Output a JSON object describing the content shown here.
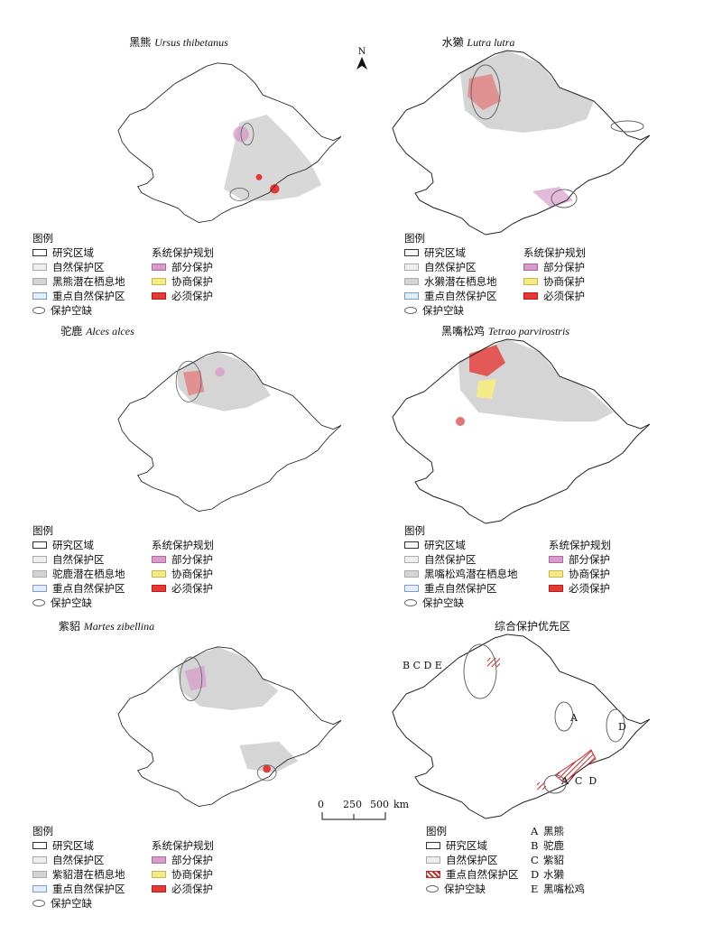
{
  "panels": [
    {
      "id": "bear",
      "title_cn": "黑熊",
      "title_latin": "Ursus thibetanus",
      "legend": {
        "header": "图例",
        "study": "研究区域",
        "nr": "自然保护区",
        "habitat": "黑熊潜在栖息地",
        "key_nr": "重点自然保护区",
        "gap": "保护空缺",
        "plan_header": "系统保护规划",
        "part": "部分保护",
        "coord": "协商保护",
        "must": "必须保护"
      }
    },
    {
      "id": "otter",
      "title_cn": "水獭",
      "title_latin": "Lutra lutra",
      "legend": {
        "header": "图例",
        "study": "研究区域",
        "nr": "自然保护区",
        "habitat": "水獭潜在栖息地",
        "key_nr": "重点自然保护区",
        "gap": "保护空缺",
        "plan_header": "系统保护规划",
        "part": "部分保护",
        "coord": "协商保护",
        "must": "必须保护"
      }
    },
    {
      "id": "moose",
      "title_cn": "驼鹿",
      "title_latin": "Alces alces",
      "legend": {
        "header": "图例",
        "study": "研究区域",
        "nr": "自然保护区",
        "habitat": "驼鹿潜在栖息地",
        "key_nr": "重点自然保护区",
        "gap": "保护空缺",
        "plan_header": "系统保护规划",
        "part": "部分保护",
        "coord": "协商保护",
        "must": "必须保护"
      }
    },
    {
      "id": "grouse",
      "title_cn": "黑嘴松鸡",
      "title_latin": "Tetrao parvirostris",
      "legend": {
        "header": "图例",
        "study": "研究区域",
        "nr": "自然保护区",
        "habitat": "黑嘴松鸡潜在栖息地",
        "key_nr": "重点自然保护区",
        "gap": "保护空缺",
        "plan_header": "系统保护规划",
        "part": "部分保护",
        "coord": "协商保护",
        "must": "必须保护"
      }
    },
    {
      "id": "sable",
      "title_cn": "紫貂",
      "title_latin": "Martes zibellina",
      "legend": {
        "header": "图例",
        "study": "研究区域",
        "nr": "自然保护区",
        "habitat": "紫貂潜在栖息地",
        "key_nr": "重点自然保护区",
        "gap": "保护空缺",
        "plan_header": "系统保护规划",
        "part": "部分保护",
        "coord": "协商保护",
        "must": "必须保护"
      }
    }
  ],
  "summary": {
    "title": "综合保护优先区",
    "legend": {
      "header": "图例",
      "study": "研究区域",
      "nr": "自然保护区",
      "key_nr": "重点自然保护区",
      "gap": "保护空缺"
    },
    "species_key": [
      {
        "letter": "A",
        "name": "黑熊"
      },
      {
        "letter": "B",
        "name": "驼鹿"
      },
      {
        "letter": "C",
        "name": "紫貂"
      },
      {
        "letter": "D",
        "name": "水獭"
      },
      {
        "letter": "E",
        "name": "黑嘴松鸡"
      }
    ],
    "labels": {
      "nw": "B C D E",
      "east": "A",
      "far_east": "D",
      "south": "A  C  D"
    }
  },
  "north_label": "N",
  "scale": {
    "t0": "0",
    "t1": "250",
    "t2": "500",
    "unit": "km"
  },
  "colors": {
    "habitat": "#d3d3d3",
    "partial": "#d79cc9",
    "coordinate": "#f3ea8a",
    "must": "#e53935",
    "key_reserve": "#7a9bd6"
  }
}
